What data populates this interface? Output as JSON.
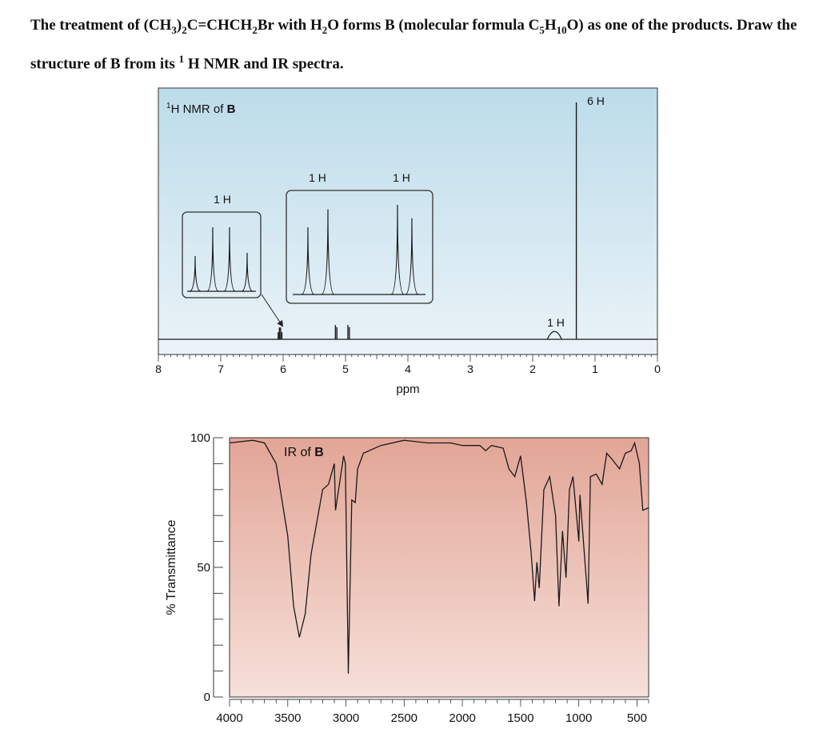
{
  "question": {
    "part1": "The treatment of (CH",
    "sub_ch3": "3",
    "part2": ")",
    "sub_paren": "2",
    "part3": "C=CHCH",
    "sub_ch2": "2",
    "part4": "Br with H",
    "sub_h2o": "2",
    "part5": "O forms B (molecular formula C",
    "sub_c5": "5",
    "part6": "H",
    "sub_h10": "10",
    "part7": "O) as one of the products. Draw the structure of B from its ",
    "sup_1": "1",
    "part8": " H NMR and IR spectra."
  },
  "colors": {
    "nmr_background_top": "#bcdcea",
    "nmr_background_bottom": "#eaf3f8",
    "ir_background_top": "#e2a596",
    "ir_background_bottom": "#f6e0da",
    "trace": "#1a1a1a"
  },
  "chart_data": [
    {
      "type": "line",
      "title_prefix": "1",
      "title_mid": "H NMR of ",
      "title_bold": "B",
      "xlabel": "ppm",
      "x_ticks": [
        "8",
        "7",
        "6",
        "5",
        "4",
        "3",
        "2",
        "1",
        "0"
      ],
      "xlim": [
        8,
        0
      ],
      "peaks": [
        {
          "ppm": 6.05,
          "relative_height": 0.05,
          "multiplet": "quartet"
        },
        {
          "ppm": 5.15,
          "relative_height": 0.06,
          "multiplet": "doublet"
        },
        {
          "ppm": 4.95,
          "relative_height": 0.06,
          "multiplet": "doublet"
        },
        {
          "ppm": 1.65,
          "relative_height": 0.03,
          "multiplet": "singlet"
        },
        {
          "ppm": 1.3,
          "relative_height": 1.0,
          "multiplet": "singlet"
        }
      ],
      "integration_labels": [
        "1 H",
        "1 H",
        "1 H",
        "1 H",
        "6 H"
      ]
    },
    {
      "type": "line",
      "title_mid": "IR of ",
      "title_bold": "B",
      "ylabel": "% Transmittance",
      "xlabel": "",
      "x_ticks": [
        "4000",
        "3500",
        "3000",
        "2500",
        "2000",
        "1500",
        "1000",
        "500"
      ],
      "y_ticks": [
        "100",
        "50",
        "0"
      ],
      "xlim": [
        4000,
        400
      ],
      "ylim": [
        0,
        100
      ],
      "points": [
        [
          4000,
          98
        ],
        [
          3800,
          99
        ],
        [
          3700,
          98
        ],
        [
          3600,
          90
        ],
        [
          3500,
          62
        ],
        [
          3450,
          35
        ],
        [
          3400,
          23
        ],
        [
          3350,
          32
        ],
        [
          3300,
          55
        ],
        [
          3200,
          80
        ],
        [
          3150,
          82
        ],
        [
          3100,
          90
        ],
        [
          3090,
          72
        ],
        [
          3050,
          84
        ],
        [
          3020,
          93
        ],
        [
          3005,
          90
        ],
        [
          2980,
          9
        ],
        [
          2950,
          76
        ],
        [
          2920,
          75
        ],
        [
          2900,
          88
        ],
        [
          2850,
          94
        ],
        [
          2700,
          97
        ],
        [
          2500,
          99
        ],
        [
          2300,
          98
        ],
        [
          2100,
          98
        ],
        [
          2000,
          97
        ],
        [
          1850,
          97
        ],
        [
          1800,
          95
        ],
        [
          1750,
          97
        ],
        [
          1650,
          96
        ],
        [
          1600,
          88
        ],
        [
          1550,
          85
        ],
        [
          1500,
          93
        ],
        [
          1450,
          75
        ],
        [
          1410,
          56
        ],
        [
          1380,
          37
        ],
        [
          1360,
          52
        ],
        [
          1340,
          42
        ],
        [
          1300,
          80
        ],
        [
          1250,
          85
        ],
        [
          1200,
          70
        ],
        [
          1170,
          35
        ],
        [
          1140,
          64
        ],
        [
          1110,
          46
        ],
        [
          1080,
          80
        ],
        [
          1050,
          85
        ],
        [
          1000,
          60
        ],
        [
          990,
          78
        ],
        [
          920,
          36
        ],
        [
          900,
          85
        ],
        [
          850,
          86
        ],
        [
          800,
          82
        ],
        [
          760,
          94
        ],
        [
          720,
          92
        ],
        [
          650,
          88
        ],
        [
          600,
          94
        ],
        [
          550,
          95
        ],
        [
          520,
          98
        ],
        [
          480,
          90
        ],
        [
          450,
          72
        ],
        [
          400,
          73
        ]
      ]
    }
  ]
}
